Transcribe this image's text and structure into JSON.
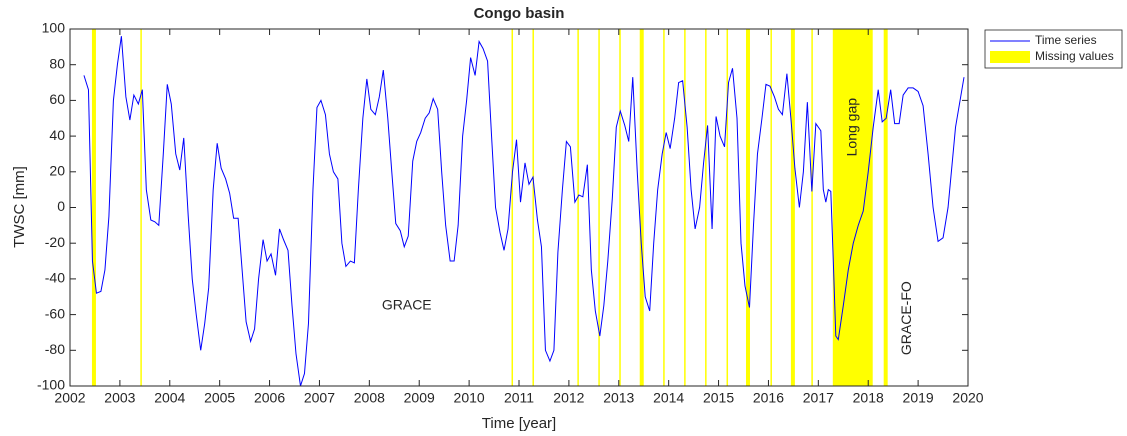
{
  "chart_data": {
    "type": "line",
    "title": "Congo basin",
    "xlabel": "Time [year]",
    "ylabel": "TWSC [mm]",
    "xlim": [
      2002,
      2020
    ],
    "ylim": [
      -100,
      100
    ],
    "xticks": [
      2002,
      2003,
      2004,
      2005,
      2006,
      2007,
      2008,
      2009,
      2010,
      2011,
      2012,
      2013,
      2014,
      2015,
      2016,
      2017,
      2018,
      2019,
      2020
    ],
    "yticks": [
      -100,
      -80,
      -60,
      -40,
      -20,
      0,
      20,
      40,
      60,
      80,
      100
    ],
    "legend": "outside-upper-right",
    "series": [
      {
        "name": "Time series",
        "color": "#0000ff",
        "x": [
          2002.28,
          2002.37,
          2002.45,
          2002.53,
          2002.62,
          2002.7,
          2002.78,
          2002.87,
          2002.95,
          2003.03,
          2003.12,
          2003.2,
          2003.28,
          2003.37,
          2003.45,
          2003.53,
          2003.62,
          2003.7,
          2003.78,
          2003.87,
          2003.95,
          2004.03,
          2004.12,
          2004.2,
          2004.28,
          2004.37,
          2004.45,
          2004.53,
          2004.62,
          2004.7,
          2004.78,
          2004.87,
          2004.95,
          2005.03,
          2005.12,
          2005.2,
          2005.28,
          2005.37,
          2005.45,
          2005.53,
          2005.62,
          2005.7,
          2005.78,
          2005.87,
          2005.95,
          2006.03,
          2006.12,
          2006.2,
          2006.28,
          2006.37,
          2006.45,
          2006.53,
          2006.62,
          2006.7,
          2006.78,
          2006.87,
          2006.95,
          2007.03,
          2007.12,
          2007.2,
          2007.28,
          2007.37,
          2007.45,
          2007.53,
          2007.62,
          2007.7,
          2007.78,
          2007.87,
          2007.95,
          2008.03,
          2008.12,
          2008.2,
          2008.28,
          2008.37,
          2008.45,
          2008.53,
          2008.62,
          2008.7,
          2008.78,
          2008.87,
          2008.95,
          2009.03,
          2009.12,
          2009.2,
          2009.28,
          2009.37,
          2009.45,
          2009.53,
          2009.62,
          2009.7,
          2009.78,
          2009.87,
          2009.95,
          2010.03,
          2010.12,
          2010.2,
          2010.28,
          2010.37,
          2010.45,
          2010.53,
          2010.62,
          2010.7,
          2010.78,
          2010.87,
          2010.95,
          2011.03,
          2011.12,
          2011.2,
          2011.28,
          2011.37,
          2011.45,
          2011.53,
          2011.62,
          2011.7,
          2011.78,
          2011.87,
          2011.95,
          2012.03,
          2012.12,
          2012.2,
          2012.28,
          2012.37,
          2012.45,
          2012.53,
          2012.62,
          2012.7,
          2012.78,
          2012.87,
          2012.95,
          2013.03,
          2013.12,
          2013.2,
          2013.28,
          2013.37,
          2013.45,
          2013.53,
          2013.62,
          2013.7,
          2013.78,
          2013.87,
          2013.95,
          2014.03,
          2014.12,
          2014.2,
          2014.28,
          2014.37,
          2014.45,
          2014.53,
          2014.62,
          2014.7,
          2014.78,
          2014.87,
          2014.95,
          2015.03,
          2015.12,
          2015.2,
          2015.28,
          2015.37,
          2015.45,
          2015.53,
          2015.62,
          2015.7,
          2015.78,
          2015.87,
          2015.95,
          2016.03,
          2016.12,
          2016.2,
          2016.28,
          2016.37,
          2016.45,
          2016.53,
          2016.62,
          2016.7,
          2016.78,
          2016.87,
          2016.95,
          2017.05,
          2017.1,
          2017.15,
          2017.2,
          2017.25,
          2017.3,
          2017.35,
          2017.4,
          2017.5,
          2017.6,
          2017.7,
          2017.8,
          2017.9,
          2018.0,
          2018.1,
          2018.2,
          2018.28,
          2018.36,
          2018.45,
          2018.53,
          2018.62,
          2018.7,
          2018.8,
          2018.9,
          2019.0,
          2019.1,
          2019.2,
          2019.3,
          2019.4,
          2019.5,
          2019.6,
          2019.75,
          2019.92
        ],
        "values": [
          74,
          66,
          -30,
          -48,
          -47,
          -35,
          -5,
          60,
          80,
          96,
          62,
          49,
          63,
          58,
          66,
          10,
          -7,
          -8,
          -10,
          30,
          69,
          58,
          30,
          21,
          39,
          -5,
          -40,
          -60,
          -80,
          -65,
          -45,
          10,
          36,
          22,
          16,
          8,
          -6,
          -6,
          -35,
          -64,
          -75,
          -68,
          -40,
          -18,
          -30,
          -26,
          -38,
          -12,
          -18,
          -24,
          -55,
          -82,
          -100,
          -93,
          -65,
          10,
          56,
          60,
          52,
          30,
          20,
          16,
          -20,
          -33,
          -30,
          -31,
          10,
          50,
          72,
          55,
          52,
          62,
          77,
          50,
          20,
          -9,
          -13,
          -22,
          -16,
          26,
          37,
          42,
          50,
          53,
          61,
          55,
          20,
          -10,
          -30,
          -30,
          -10,
          40,
          60,
          84,
          74,
          93,
          89,
          82,
          40,
          0,
          -14,
          -24,
          -12,
          20,
          38,
          3,
          25,
          13,
          17,
          -7,
          -22,
          -80,
          -86,
          -80,
          -25,
          10,
          37,
          34,
          3,
          7,
          6,
          24,
          -35,
          -58,
          -72,
          -55,
          -30,
          5,
          45,
          54,
          46,
          37,
          73,
          20,
          -20,
          -50,
          -58,
          -20,
          10,
          30,
          42,
          33,
          50,
          70,
          71,
          45,
          10,
          -12,
          0,
          25,
          46,
          -12,
          51,
          40,
          34,
          70,
          78,
          50,
          -20,
          -44,
          -56,
          -10,
          30,
          50,
          69,
          68,
          62,
          55,
          52,
          75,
          50,
          22,
          0,
          20,
          59,
          9,
          47,
          43,
          10,
          3,
          10,
          9,
          -30,
          -72,
          -74,
          -55,
          -35,
          -20,
          -10,
          -2,
          20,
          45,
          66,
          48,
          50,
          66,
          47,
          47,
          63,
          67,
          67,
          65,
          57,
          30,
          0,
          -19,
          -17,
          0,
          45,
          73
        ]
      }
    ],
    "missing": {
      "name": "Missing values",
      "color": "#ffff00",
      "periods": [
        [
          2002.44,
          2002.52
        ],
        [
          2003.41,
          2003.44
        ],
        [
          2010.85,
          2010.88
        ],
        [
          2011.27,
          2011.3
        ],
        [
          2012.17,
          2012.2
        ],
        [
          2012.59,
          2012.62
        ],
        [
          2013.01,
          2013.04
        ],
        [
          2013.42,
          2013.5
        ],
        [
          2013.89,
          2013.92
        ],
        [
          2014.31,
          2014.34
        ],
        [
          2014.73,
          2014.76
        ],
        [
          2015.16,
          2015.19
        ],
        [
          2015.55,
          2015.63
        ],
        [
          2016.04,
          2016.07
        ],
        [
          2016.45,
          2016.53
        ],
        [
          2016.86,
          2016.89
        ],
        [
          2017.29,
          2018.09
        ],
        [
          2018.31,
          2018.39
        ]
      ]
    },
    "annotations": [
      {
        "text": "GRACE",
        "x": 2008.75,
        "y": -55,
        "rotation": 0
      },
      {
        "text": "Long gap",
        "x": 2017.69,
        "y": 45,
        "rotation": -90
      },
      {
        "text": "GRACE-FO",
        "x": 2018.78,
        "y": -62,
        "rotation": -90
      }
    ]
  }
}
